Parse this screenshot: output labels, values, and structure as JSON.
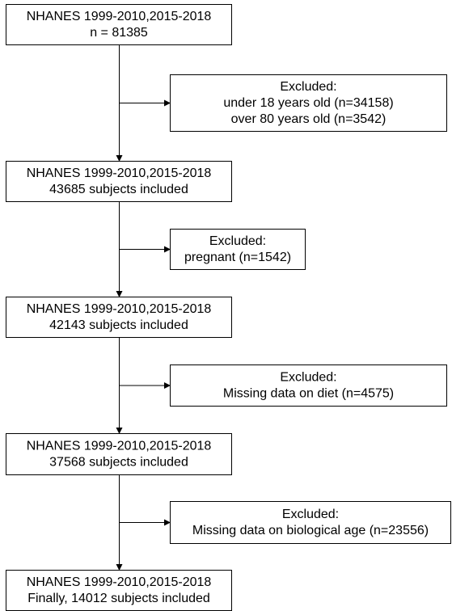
{
  "nodes": [
    {
      "lines": [
        "NHANES 1999-2010,2015-2018",
        "n = 81385"
      ]
    },
    {
      "lines": [
        "NHANES 1999-2010,2015-2018",
        "43685 subjects included"
      ]
    },
    {
      "lines": [
        "NHANES 1999-2010,2015-2018",
        "42143 subjects included"
      ]
    },
    {
      "lines": [
        "NHANES 1999-2010,2015-2018",
        "37568 subjects included"
      ]
    },
    {
      "lines": [
        "NHANES 1999-2010,2015-2018",
        "Finally, 14012 subjects included"
      ]
    }
  ],
  "exclusions": [
    {
      "lines": [
        "Excluded:",
        "under 18 years old (n=34158)",
        "over 80 years old (n=3542)"
      ]
    },
    {
      "lines": [
        "Excluded:",
        "pregnant (n=1542)"
      ]
    },
    {
      "lines": [
        "Excluded:",
        "Missing data on diet (n=4575)"
      ]
    },
    {
      "lines": [
        "Excluded:",
        "Missing data on biological age (n=23556)"
      ]
    }
  ]
}
